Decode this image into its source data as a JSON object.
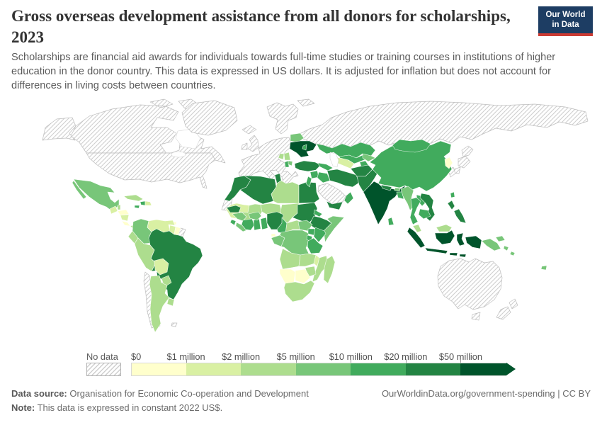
{
  "header": {
    "title": "Gross overseas development assistance from all donors for scholarships, 2023",
    "subtitle": "Scholarships are financial aid awards for individuals towards full-time studies or training courses in institutions of higher education in the donor country. This data is expressed in US dollars. It is adjusted for inflation but does not account for differences in living costs between countries.",
    "logo": {
      "line1": "Our World",
      "line2": "in Data",
      "bg_color": "#1d3d63",
      "accent_color": "#cc3b33"
    }
  },
  "legend": {
    "no_data_label": "No data",
    "tick_labels": [
      "$0",
      "$1 million",
      "$2 million",
      "$5 million",
      "$10 million",
      "$20 million",
      "$50 million"
    ],
    "bin_colors": [
      "#ffffcc",
      "#d9f0a3",
      "#addd8e",
      "#78c679",
      "#41ab5d",
      "#238443",
      "#00542b"
    ],
    "hatch_color": "#cfcfcf"
  },
  "footer": {
    "source_label": "Data source:",
    "source_text": " Organisation for Economic Co-operation and Development",
    "note_label": "Note:",
    "note_text": " This data is expressed in constant 2022 US$.",
    "right_text": "OurWorldinData.org/government-spending | CC BY"
  },
  "chart_data": {
    "type": "choropleth",
    "title": "Gross overseas development assistance from all donors for scholarships",
    "year": 2023,
    "unit": "constant 2022 US$",
    "legend_position": "bottom",
    "bins": [
      "$0-1 million",
      "$1-2 million",
      "$2-5 million",
      "$5-10 million",
      "$10-20 million",
      "$20-50 million",
      "$50+ million"
    ],
    "no_data_regions": [
      "canada",
      "usa",
      "alaska",
      "greenland",
      "iceland",
      "uk",
      "ireland",
      "scandinavia",
      "western-europe",
      "russia",
      "svalbard",
      "japan",
      "south-korea",
      "saudi-arabia",
      "australia",
      "tasmania",
      "new-zealand",
      "chile",
      "french-guiana",
      "western-sahara",
      "falklands"
    ],
    "regions": {
      "canada": "nd",
      "usa": "nd",
      "alaska": "nd",
      "greenland": "nd",
      "iceland": "nd",
      "uk": "nd",
      "ireland": "nd",
      "scandinavia": "nd",
      "western-europe": "nd",
      "russia": "nd",
      "svalbard": "nd",
      "japan": "nd",
      "south-korea": "nd",
      "saudi-arabia": "nd",
      "australia": "nd",
      "tasmania": "nd",
      "new-zealand": "nd",
      "chile": "nd",
      "french-guiana": "nd",
      "western-sahara": "nd",
      "falklands": "nd",
      "mexico": 3,
      "guatemala": 1,
      "belize": 2,
      "honduras": 0,
      "nicaragua": 1,
      "costa-rica": 0,
      "panama": 2,
      "cuba": 2,
      "jamaica": 4,
      "haiti": 4,
      "dominican-republic": 1,
      "trinidad-and-tobago": 0,
      "colombia": 3,
      "venezuela": 1,
      "guyana": 1,
      "suriname": 0,
      "ecuador": 2,
      "peru": 2,
      "brazil": 5,
      "bolivia": 1,
      "paraguay": 2,
      "argentina": 2,
      "uruguay": 2,
      "morocco": 5,
      "algeria": 5,
      "tunisia": 5,
      "libya": 2,
      "egypt": 5,
      "mauritania": 1,
      "mali": 2,
      "niger": 2,
      "chad": 2,
      "sudan": 5,
      "eritrea": 4,
      "ethiopia": 5,
      "somalia": 3,
      "senegal": 5,
      "guinea": 3,
      "sierra-leone": 4,
      "liberia": 3,
      "cote-divoire": 4,
      "ghana": 4,
      "togo-benin": 4,
      "burkina-faso": 3,
      "nigeria": 5,
      "cameroon": 4,
      "central-african-republic": 2,
      "south-sudan": 3,
      "uganda": 4,
      "kenya": 4,
      "dr-congo": 3,
      "gabon-congo": 3,
      "equatorial-guinea": 0,
      "rwanda-burundi": 4,
      "tanzania": 4,
      "angola": 2,
      "zambia": 2,
      "malawi": 1,
      "mozambique": 2,
      "zimbabwe": 2,
      "botswana": 0,
      "namibia": 0,
      "south-africa": 2,
      "madagascar": 2,
      "belarus": 3,
      "ukraine": 6,
      "moldova": 4,
      "serbia": 2,
      "bosnia": 2,
      "albania": 4,
      "north-macedonia": 3,
      "turkey": 5,
      "caucasus": 4,
      "syria": 4,
      "levant": 4,
      "iraq": 4,
      "iran": 5,
      "yemen": 5,
      "oman": 4,
      "kazakhstan": 4,
      "turkmenistan": 1,
      "uzbekistan": 4,
      "kyrgyzstan": 3,
      "tajikistan": 4,
      "afghanistan": 5,
      "pakistan": 5,
      "india": 6,
      "nepal": 5,
      "bhutan": 3,
      "bangladesh": 4,
      "sri-lanka": 4,
      "myanmar": 3,
      "thailand": 4,
      "laos": 4,
      "vietnam": 5,
      "cambodia": 4,
      "china": 4,
      "mongolia": 4,
      "north-korea": 0,
      "taiwan": 4,
      "malaysia": 2,
      "indonesia": 6,
      "philippines": 5,
      "papua-new-guinea": 3,
      "solomon-islands": 3,
      "fiji": 3
    }
  }
}
